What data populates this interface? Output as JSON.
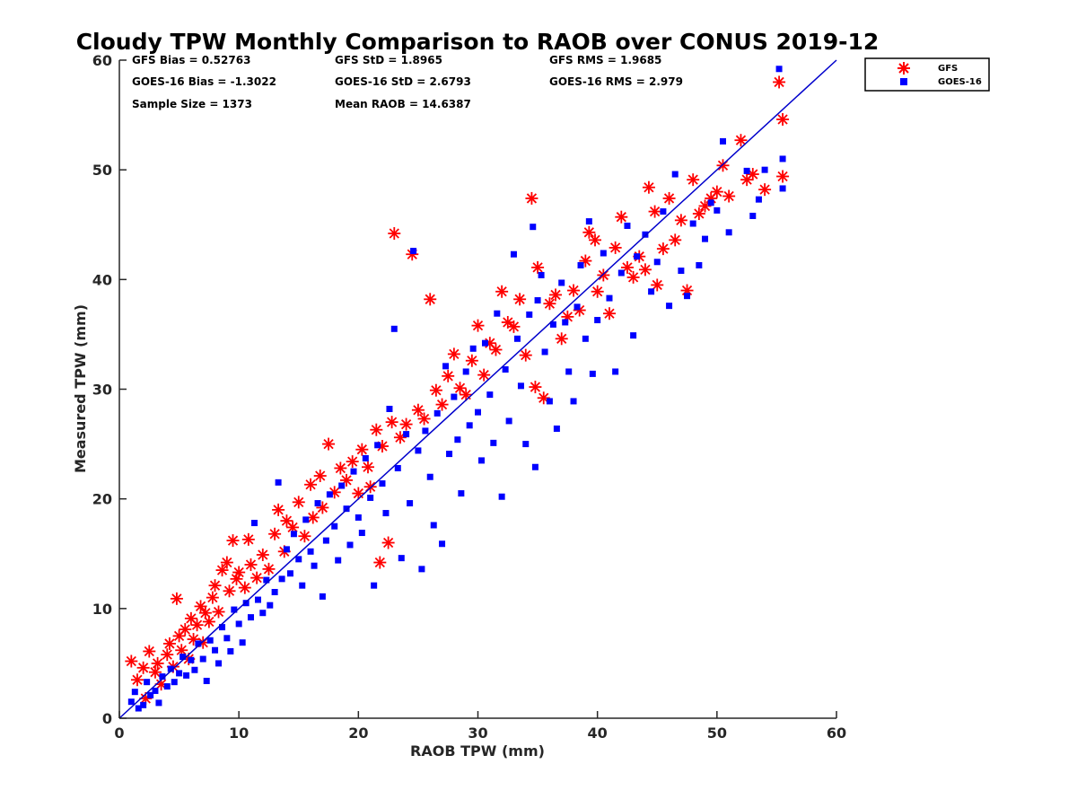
{
  "chart_data": {
    "type": "scatter",
    "title": "Cloudy TPW Monthly Comparison to RAOB over CONUS 2019-12",
    "xlabel": "RAOB TPW (mm)",
    "ylabel": "Measured TPW (mm)",
    "xlim": [
      0,
      60
    ],
    "ylim": [
      0,
      60
    ],
    "xticks": [
      "0",
      "10",
      "20",
      "30",
      "40",
      "50",
      "60"
    ],
    "yticks": [
      "0",
      "10",
      "20",
      "30",
      "40",
      "50",
      "60"
    ],
    "grid": false,
    "legend_position": "top-right outside plot",
    "reference_line": {
      "x": [
        0,
        60
      ],
      "y": [
        0,
        60
      ],
      "color": "#0000CC"
    },
    "stats": [
      "GFS Bias = 0.52763",
      "GFS StD = 1.8965",
      "GFS RMS = 1.9685",
      "GOES-16 Bias = -1.3022",
      "GOES-16 StD = 2.6793",
      "GOES-16 RMS = 2.979",
      "Sample Size = 1373",
      "Mean RAOB = 14.6387"
    ],
    "series": [
      {
        "name": "GFS",
        "marker": "asterisk",
        "color": "#FF0000",
        "points": [
          [
            1,
            5.2
          ],
          [
            1.5,
            3.5
          ],
          [
            2,
            4.6
          ],
          [
            2.2,
            1.8
          ],
          [
            2.5,
            6.1
          ],
          [
            3,
            4.2
          ],
          [
            3.2,
            5
          ],
          [
            3.5,
            3.1
          ],
          [
            4,
            5.8
          ],
          [
            4.2,
            6.8
          ],
          [
            4.5,
            4.7
          ],
          [
            4.8,
            10.9
          ],
          [
            5,
            7.5
          ],
          [
            5.2,
            6.2
          ],
          [
            5.5,
            8.1
          ],
          [
            5.8,
            5.4
          ],
          [
            6,
            9.1
          ],
          [
            6.2,
            7.2
          ],
          [
            6.5,
            8.5
          ],
          [
            6.8,
            10.2
          ],
          [
            7,
            6.9
          ],
          [
            7.2,
            9.6
          ],
          [
            7.5,
            8.8
          ],
          [
            7.8,
            11
          ],
          [
            8,
            12.1
          ],
          [
            8.3,
            9.7
          ],
          [
            8.6,
            13.5
          ],
          [
            9,
            14.2
          ],
          [
            9.2,
            11.6
          ],
          [
            9.5,
            16.2
          ],
          [
            9.8,
            12.7
          ],
          [
            10,
            13.3
          ],
          [
            10.5,
            11.9
          ],
          [
            10.8,
            16.3
          ],
          [
            11,
            14
          ],
          [
            11.5,
            12.8
          ],
          [
            12,
            14.9
          ],
          [
            12.5,
            13.6
          ],
          [
            13,
            16.8
          ],
          [
            13.3,
            19
          ],
          [
            13.8,
            15.2
          ],
          [
            14,
            18
          ],
          [
            14.5,
            17.4
          ],
          [
            15,
            19.7
          ],
          [
            15.5,
            16.6
          ],
          [
            16,
            21.3
          ],
          [
            16.2,
            18.3
          ],
          [
            16.8,
            22.1
          ],
          [
            17,
            19.2
          ],
          [
            17.5,
            25
          ],
          [
            18,
            20.6
          ],
          [
            18.5,
            22.8
          ],
          [
            19,
            21.7
          ],
          [
            19.5,
            23.4
          ],
          [
            20,
            20.5
          ],
          [
            20.3,
            24.5
          ],
          [
            20.8,
            22.9
          ],
          [
            21,
            21.1
          ],
          [
            21.5,
            26.3
          ],
          [
            21.8,
            14.2
          ],
          [
            22,
            24.8
          ],
          [
            22.5,
            16
          ],
          [
            22.8,
            27
          ],
          [
            23,
            44.2
          ],
          [
            23.5,
            25.6
          ],
          [
            24,
            26.8
          ],
          [
            24.5,
            42.3
          ],
          [
            25,
            28.1
          ],
          [
            25.5,
            27.3
          ],
          [
            26,
            38.2
          ],
          [
            26.5,
            29.9
          ],
          [
            27,
            28.6
          ],
          [
            27.5,
            31.2
          ],
          [
            28,
            33.2
          ],
          [
            28.5,
            30.1
          ],
          [
            29,
            29.5
          ],
          [
            29.5,
            32.6
          ],
          [
            30,
            35.8
          ],
          [
            30.5,
            31.3
          ],
          [
            31,
            34.2
          ],
          [
            31.5,
            33.6
          ],
          [
            32,
            38.9
          ],
          [
            32.5,
            36.1
          ],
          [
            33,
            35.7
          ],
          [
            33.5,
            38.2
          ],
          [
            34,
            33.1
          ],
          [
            34.5,
            47.4
          ],
          [
            34.8,
            30.2
          ],
          [
            35,
            41.1
          ],
          [
            35.5,
            29.2
          ],
          [
            36,
            37.8
          ],
          [
            36.5,
            38.6
          ],
          [
            37,
            34.6
          ],
          [
            37.5,
            36.6
          ],
          [
            38,
            39
          ],
          [
            38.5,
            37.2
          ],
          [
            39,
            41.7
          ],
          [
            39.3,
            44.3
          ],
          [
            39.8,
            43.6
          ],
          [
            40,
            38.9
          ],
          [
            40.5,
            40.4
          ],
          [
            41,
            36.9
          ],
          [
            41.5,
            42.9
          ],
          [
            42,
            45.7
          ],
          [
            42.5,
            41.1
          ],
          [
            43,
            40.2
          ],
          [
            43.5,
            42.1
          ],
          [
            44,
            40.9
          ],
          [
            44.3,
            48.4
          ],
          [
            44.8,
            46.2
          ],
          [
            45,
            39.5
          ],
          [
            45.5,
            42.8
          ],
          [
            46,
            47.4
          ],
          [
            46.5,
            43.6
          ],
          [
            47,
            45.4
          ],
          [
            47.5,
            39
          ],
          [
            48,
            49.1
          ],
          [
            48.5,
            46
          ],
          [
            49,
            46.7
          ],
          [
            49.5,
            47.4
          ],
          [
            50,
            48
          ],
          [
            50.5,
            50.4
          ],
          [
            51,
            47.6
          ],
          [
            52,
            52.7
          ],
          [
            52.5,
            49.1
          ],
          [
            53,
            49.6
          ],
          [
            54,
            48.2
          ],
          [
            55.2,
            58
          ],
          [
            55.5,
            54.6
          ],
          [
            55.5,
            49.4
          ]
        ]
      },
      {
        "name": "GOES-16",
        "marker": "square",
        "color": "#0000FF",
        "points": [
          [
            1,
            1.5
          ],
          [
            1.3,
            2.4
          ],
          [
            1.6,
            0.9
          ],
          [
            2,
            1.2
          ],
          [
            2.3,
            3.3
          ],
          [
            2.6,
            2.1
          ],
          [
            3,
            2.5
          ],
          [
            3.3,
            1.4
          ],
          [
            3.6,
            3.8
          ],
          [
            4,
            2.9
          ],
          [
            4.3,
            4.5
          ],
          [
            4.6,
            3.3
          ],
          [
            5,
            4.1
          ],
          [
            5.3,
            5.6
          ],
          [
            5.6,
            3.9
          ],
          [
            6,
            5.3
          ],
          [
            6.3,
            4.4
          ],
          [
            6.6,
            6.8
          ],
          [
            7,
            5.4
          ],
          [
            7.3,
            3.4
          ],
          [
            7.6,
            7.1
          ],
          [
            8,
            6.2
          ],
          [
            8.3,
            5
          ],
          [
            8.6,
            8.3
          ],
          [
            9,
            7.3
          ],
          [
            9.3,
            6.1
          ],
          [
            9.6,
            9.9
          ],
          [
            10,
            8.6
          ],
          [
            10.3,
            6.9
          ],
          [
            10.6,
            10.5
          ],
          [
            11,
            9.2
          ],
          [
            11.3,
            17.8
          ],
          [
            11.6,
            10.8
          ],
          [
            12,
            9.6
          ],
          [
            12.3,
            12.6
          ],
          [
            12.6,
            10.3
          ],
          [
            13,
            11.5
          ],
          [
            13.3,
            21.5
          ],
          [
            13.6,
            12.7
          ],
          [
            14,
            15.4
          ],
          [
            14.3,
            13.2
          ],
          [
            14.6,
            16.8
          ],
          [
            15,
            14.5
          ],
          [
            15.3,
            12.1
          ],
          [
            15.6,
            18.1
          ],
          [
            16,
            15.2
          ],
          [
            16.3,
            13.9
          ],
          [
            16.6,
            19.6
          ],
          [
            17,
            11.1
          ],
          [
            17.3,
            16.2
          ],
          [
            17.6,
            20.4
          ],
          [
            18,
            17.5
          ],
          [
            18.3,
            14.4
          ],
          [
            18.6,
            21.2
          ],
          [
            19,
            19.1
          ],
          [
            19.3,
            15.8
          ],
          [
            19.6,
            22.5
          ],
          [
            20,
            18.3
          ],
          [
            20.3,
            16.9
          ],
          [
            20.6,
            23.7
          ],
          [
            21,
            20.1
          ],
          [
            21.3,
            12.1
          ],
          [
            21.6,
            24.9
          ],
          [
            22,
            21.4
          ],
          [
            22.3,
            18.7
          ],
          [
            22.6,
            28.2
          ],
          [
            23,
            35.5
          ],
          [
            23.3,
            22.8
          ],
          [
            23.6,
            14.6
          ],
          [
            24,
            25.9
          ],
          [
            24.3,
            19.6
          ],
          [
            24.6,
            42.6
          ],
          [
            25,
            24.4
          ],
          [
            25.3,
            13.6
          ],
          [
            25.6,
            26.2
          ],
          [
            26,
            22
          ],
          [
            26.3,
            17.6
          ],
          [
            26.6,
            27.8
          ],
          [
            27,
            15.9
          ],
          [
            27.3,
            32.1
          ],
          [
            27.6,
            24.1
          ],
          [
            28,
            29.3
          ],
          [
            28.3,
            25.4
          ],
          [
            28.6,
            20.5
          ],
          [
            29,
            31.6
          ],
          [
            29.3,
            26.7
          ],
          [
            29.6,
            33.7
          ],
          [
            30,
            27.9
          ],
          [
            30.3,
            23.5
          ],
          [
            30.6,
            34.2
          ],
          [
            31,
            29.5
          ],
          [
            31.3,
            25.1
          ],
          [
            31.6,
            36.9
          ],
          [
            32,
            20.2
          ],
          [
            32.3,
            31.8
          ],
          [
            32.6,
            27.1
          ],
          [
            33,
            42.3
          ],
          [
            33.3,
            34.6
          ],
          [
            33.6,
            30.3
          ],
          [
            34,
            25
          ],
          [
            34.3,
            36.8
          ],
          [
            34.6,
            44.8
          ],
          [
            34.8,
            22.9
          ],
          [
            35,
            38.1
          ],
          [
            35.3,
            40.4
          ],
          [
            35.6,
            33.4
          ],
          [
            36,
            28.9
          ],
          [
            36.3,
            35.9
          ],
          [
            36.6,
            26.4
          ],
          [
            37,
            39.7
          ],
          [
            37.3,
            36.1
          ],
          [
            37.6,
            31.6
          ],
          [
            38,
            28.9
          ],
          [
            38.3,
            37.5
          ],
          [
            38.6,
            41.3
          ],
          [
            39,
            34.6
          ],
          [
            39.3,
            45.3
          ],
          [
            39.6,
            31.4
          ],
          [
            40,
            36.3
          ],
          [
            40.5,
            42.4
          ],
          [
            41,
            38.3
          ],
          [
            41.5,
            31.6
          ],
          [
            42,
            40.6
          ],
          [
            42.5,
            44.9
          ],
          [
            43,
            34.9
          ],
          [
            43.3,
            42.1
          ],
          [
            44,
            44.1
          ],
          [
            44.5,
            38.9
          ],
          [
            45,
            41.6
          ],
          [
            45.5,
            46.2
          ],
          [
            46,
            37.6
          ],
          [
            46.5,
            49.6
          ],
          [
            47,
            40.8
          ],
          [
            47.5,
            38.5
          ],
          [
            48,
            45.1
          ],
          [
            48.5,
            41.3
          ],
          [
            49,
            43.7
          ],
          [
            49.5,
            47
          ],
          [
            50,
            46.3
          ],
          [
            50.5,
            52.6
          ],
          [
            51,
            44.3
          ],
          [
            52.5,
            49.9
          ],
          [
            53,
            45.8
          ],
          [
            53.5,
            47.3
          ],
          [
            54,
            50
          ],
          [
            55.2,
            59.2
          ],
          [
            55.5,
            51
          ],
          [
            55.5,
            48.3
          ]
        ]
      }
    ]
  },
  "legend": {
    "entries": [
      "GFS",
      "GOES-16"
    ]
  }
}
